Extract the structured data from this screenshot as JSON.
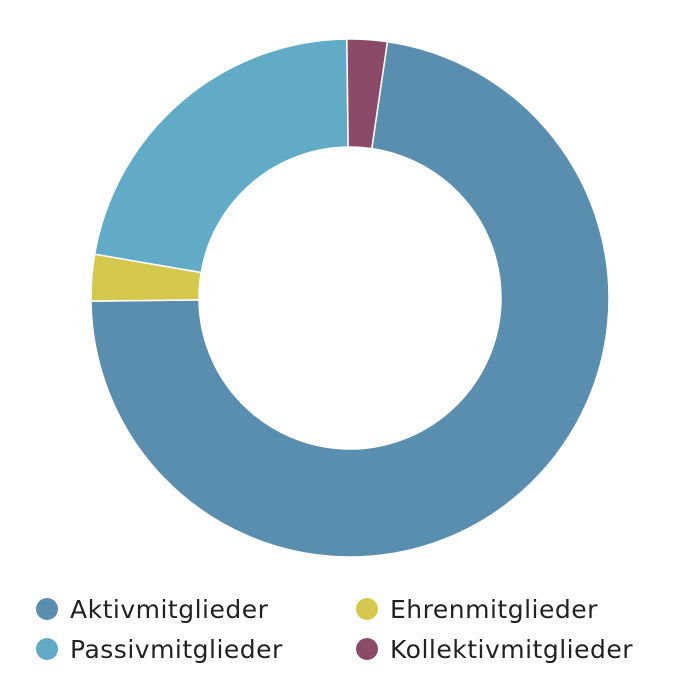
{
  "chart_data": {
    "type": "pie",
    "donut": true,
    "categories": [
      "Aktivmitglieder",
      "Ehrenmitglieder",
      "Passivmitglieder",
      "Kollektivmitglieder"
    ],
    "values": [
      72.5,
      2.9,
      22.1,
      2.5
    ],
    "colors": [
      "#5a8eae",
      "#d4c84e",
      "#62abc6",
      "#8c4a6a"
    ],
    "legend_placement": "bottom"
  },
  "legend": {
    "items": [
      {
        "label": "Aktivmitglieder",
        "color": "#5a8eae"
      },
      {
        "label": "Ehrenmitglieder",
        "color": "#d4c84e"
      },
      {
        "label": "Passivmitglieder",
        "color": "#62abc6"
      },
      {
        "label": "Kollektivmitglieder",
        "color": "#8c4a6a"
      }
    ]
  }
}
